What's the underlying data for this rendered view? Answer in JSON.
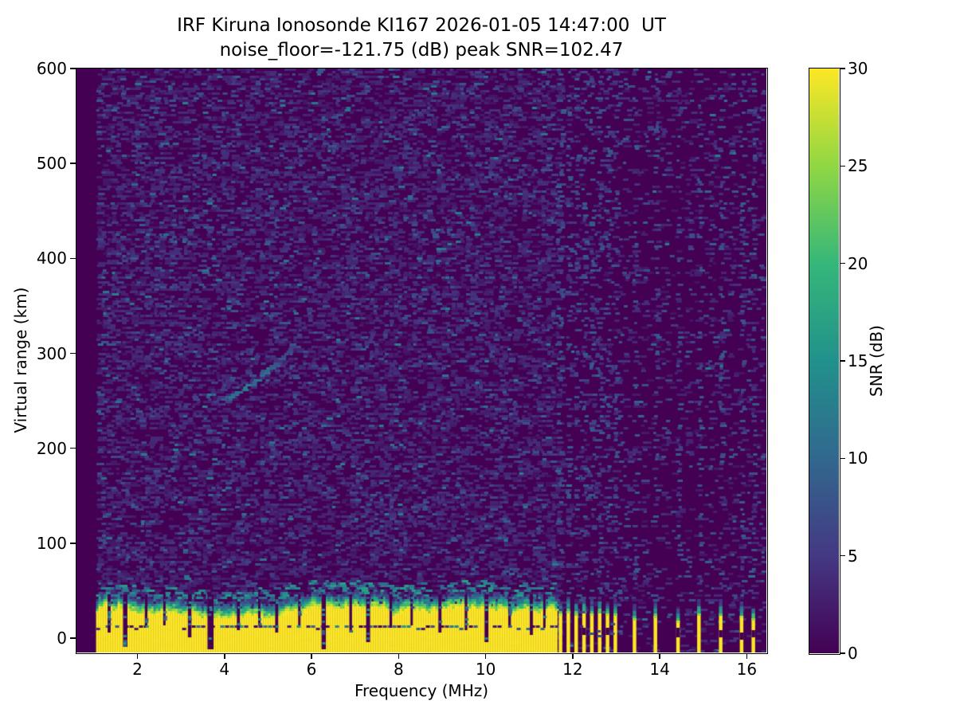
{
  "figure": {
    "background": "#ffffff"
  },
  "chart_data": {
    "type": "heatmap",
    "title": "IRF Kiruna Ionosonde KI167 2026-01-05 14:47:00  UT",
    "subtitle": "noise_floor=-121.75 (dB) peak SNR=102.47",
    "station": "IRF Kiruna",
    "instrument": "Ionosonde KI167",
    "datetime_ut": "2026-01-05 14:47:00",
    "noise_floor_db": -121.75,
    "peak_snr_db": 102.47,
    "xlabel": "Frequency (MHz)",
    "ylabel": "Virtual range (km)",
    "xlim": [
      0.6,
      16.45
    ],
    "ylim": [
      -15,
      600
    ],
    "xticks": [
      2,
      4,
      6,
      8,
      10,
      12,
      14,
      16
    ],
    "yticks": [
      0,
      100,
      200,
      300,
      400,
      500,
      600
    ],
    "grid": false,
    "colorbar": {
      "label": "SNR (dB)",
      "ticks": [
        0,
        5,
        10,
        15,
        20,
        25,
        30
      ],
      "lim": [
        0,
        30
      ],
      "colormap": "viridis",
      "colormap_stops": [
        [
          0,
          "#440154"
        ],
        [
          5,
          "#443983"
        ],
        [
          10,
          "#31688e"
        ],
        [
          15,
          "#21918c"
        ],
        [
          20,
          "#35b779"
        ],
        [
          25,
          "#90d743"
        ],
        [
          30,
          "#fde725"
        ]
      ]
    },
    "features": {
      "no_data_below_mhz": 1.05,
      "noise": {
        "faint": 0.4,
        "medium": 0.075,
        "bright": 0.012,
        "right_factor": 0.28,
        "faint_db": [
          1.5,
          4.7
        ],
        "medium_db": [
          5,
          8.5
        ],
        "bright_db": [
          9,
          13
        ]
      },
      "faint_columns_mhz": [
        2.78,
        3.35,
        5.05,
        6.92,
        8.32,
        10.35
      ],
      "ground_clutter": {
        "freq_start": 1.05,
        "freq_end": 11.62,
        "top_km": 27,
        "fringe_km": 15,
        "inner_line_km": 12,
        "snr_db": 30,
        "notches": [
          [
            1.35,
            0.07,
            8
          ],
          [
            1.72,
            0.1,
            -8
          ],
          [
            2.2,
            0.06,
            12
          ],
          [
            2.62,
            0.05,
            15
          ],
          [
            3.2,
            0.08,
            2
          ],
          [
            3.68,
            0.14,
            -10
          ],
          [
            4.32,
            0.07,
            10
          ],
          [
            4.8,
            0.05,
            16
          ],
          [
            5.2,
            0.07,
            6
          ],
          [
            5.72,
            0.05,
            14
          ],
          [
            6.28,
            0.1,
            -10
          ],
          [
            6.9,
            0.06,
            8
          ],
          [
            7.3,
            0.09,
            -4
          ],
          [
            7.82,
            0.06,
            12
          ],
          [
            8.3,
            0.05,
            16
          ],
          [
            8.95,
            0.07,
            6
          ],
          [
            9.55,
            0.06,
            10
          ],
          [
            10.02,
            0.09,
            -2
          ],
          [
            10.55,
            0.06,
            12
          ],
          [
            11.05,
            0.07,
            4
          ],
          [
            11.35,
            0.05,
            12
          ]
        ]
      },
      "stripes": [
        [
          11.72,
          26
        ],
        [
          11.9,
          28
        ],
        [
          12.08,
          25
        ],
        [
          12.26,
          27
        ],
        [
          12.44,
          26
        ],
        [
          12.62,
          28
        ],
        [
          12.8,
          25
        ],
        [
          12.98,
          24
        ],
        [
          13.42,
          20
        ],
        [
          13.9,
          22
        ],
        [
          14.42,
          18
        ],
        [
          14.9,
          24
        ],
        [
          15.4,
          26
        ],
        [
          15.88,
          22
        ],
        [
          16.15,
          20
        ]
      ],
      "rfi": {
        "column_density": 0.3,
        "extra_density": 0.1,
        "extra_mhz": [
          11.66,
          12.17,
          12.35,
          12.53,
          12.71,
          12.89,
          13.07,
          13.2,
          13.65,
          14.15,
          14.65,
          15.15,
          15.62,
          16.02,
          16.3
        ]
      },
      "echo_trace": {
        "f_start": 3.9,
        "f_end": 5.5,
        "km_start": 250,
        "km_end": 306,
        "curve_km": 24,
        "snr_db": 14
      }
    }
  }
}
